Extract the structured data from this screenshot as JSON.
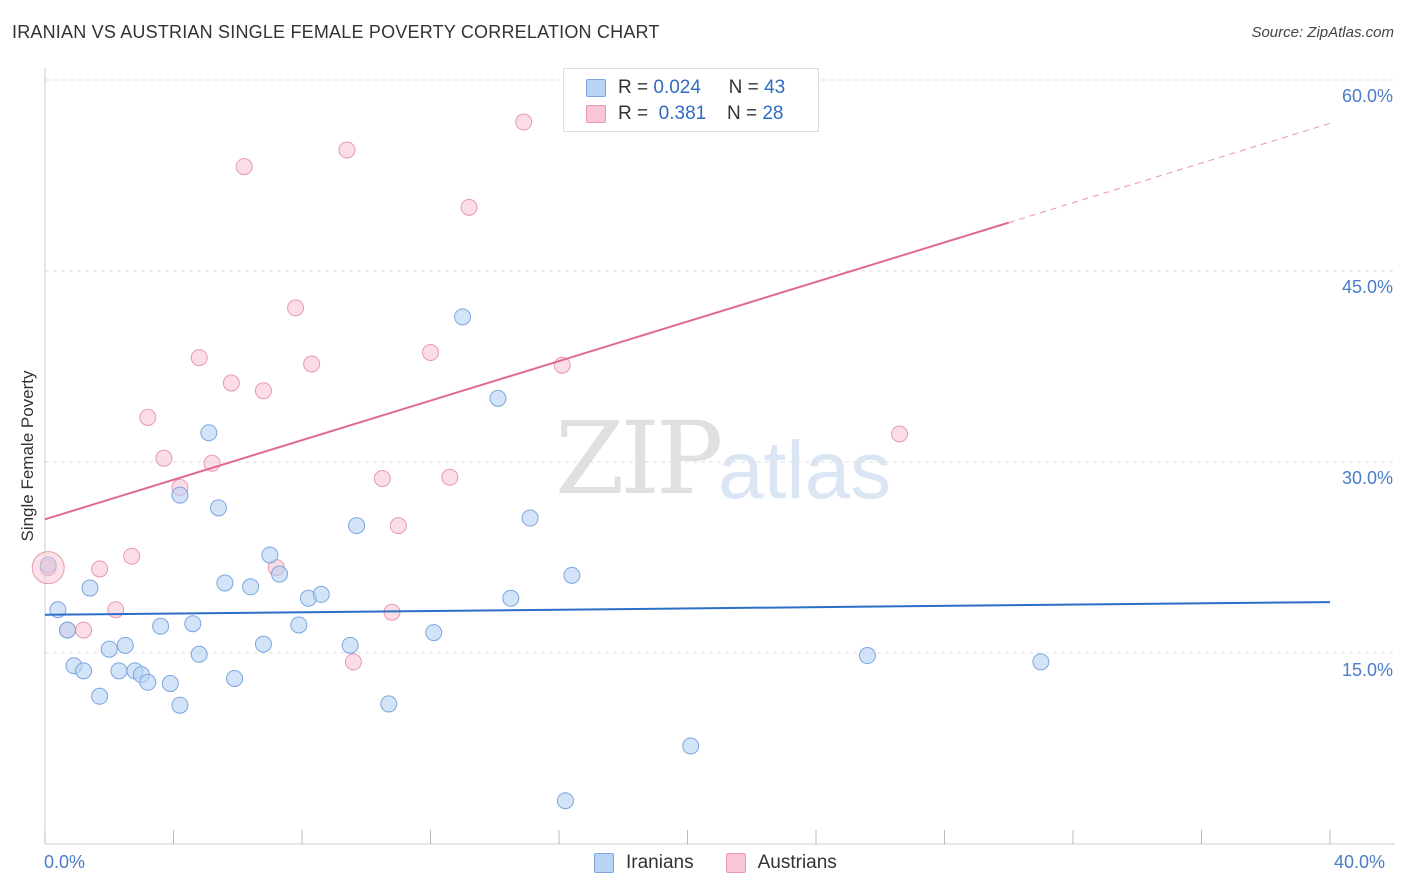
{
  "title": "IRANIAN VS AUSTRIAN SINGLE FEMALE POVERTY CORRELATION CHART",
  "source": "Source: ZipAtlas.com",
  "watermark": {
    "zip": "ZIP",
    "atlas": "atlas"
  },
  "legend": {
    "rows": [
      {
        "r_label": "R =",
        "r_value": "0.024",
        "n_label": "N =",
        "n_value": "43"
      },
      {
        "r_label": "R =",
        "r_value": "0.381",
        "n_label": "N =",
        "n_value": "28"
      }
    ]
  },
  "bottom_legend": [
    "Iranians",
    "Austrians"
  ],
  "colors": {
    "iranian_fill": "#b8d2f4",
    "iranian_stroke": "#7ba6de",
    "iranian_line": "#2c6fc7",
    "austrian_fill": "#f8c6d4",
    "austrian_stroke": "#e89ab2",
    "austrian_line": "#e06a92",
    "axis_text": "#4a7cc8"
  },
  "chart_data": {
    "type": "scatter",
    "title": "IRANIAN VS AUSTRIAN SINGLE FEMALE POVERTY CORRELATION CHART",
    "xlabel": "",
    "ylabel": "Single Female Poverty",
    "xlim": [
      0,
      40
    ],
    "ylim": [
      0,
      60
    ],
    "x_tick_labels": [
      "0.0%",
      "40.0%"
    ],
    "y_ticks": [
      15,
      30,
      45,
      60
    ],
    "y_tick_labels": [
      "15.0%",
      "30.0%",
      "45.0%",
      "60.0%"
    ],
    "grid": true,
    "series": [
      {
        "name": "Iranians",
        "R": 0.024,
        "N": 43,
        "trend": {
          "x0": 0,
          "y0": 18.0,
          "x1": 40,
          "y1": 19.0
        },
        "points": [
          [
            0.1,
            21.9
          ],
          [
            0.4,
            18.4
          ],
          [
            0.7,
            16.8
          ],
          [
            0.9,
            14.0
          ],
          [
            1.2,
            13.6
          ],
          [
            1.4,
            20.1
          ],
          [
            1.7,
            11.6
          ],
          [
            2.0,
            15.3
          ],
          [
            2.3,
            13.6
          ],
          [
            2.5,
            15.6
          ],
          [
            2.8,
            13.6
          ],
          [
            3.0,
            13.3
          ],
          [
            3.2,
            12.7
          ],
          [
            3.6,
            17.1
          ],
          [
            3.9,
            12.6
          ],
          [
            4.2,
            10.9
          ],
          [
            4.6,
            17.3
          ],
          [
            4.8,
            14.9
          ],
          [
            5.1,
            32.3
          ],
          [
            5.4,
            26.4
          ],
          [
            5.6,
            20.5
          ],
          [
            5.9,
            13.0
          ],
          [
            6.4,
            20.2
          ],
          [
            6.8,
            15.7
          ],
          [
            7.0,
            22.7
          ],
          [
            7.3,
            21.2
          ],
          [
            7.9,
            17.2
          ],
          [
            8.2,
            19.3
          ],
          [
            8.6,
            19.6
          ],
          [
            9.5,
            15.6
          ],
          [
            9.7,
            25.0
          ],
          [
            10.7,
            11.0
          ],
          [
            12.1,
            16.6
          ],
          [
            13.0,
            41.4
          ],
          [
            14.1,
            35.0
          ],
          [
            14.5,
            19.3
          ],
          [
            15.1,
            25.6
          ],
          [
            16.2,
            3.4
          ],
          [
            16.4,
            21.1
          ],
          [
            20.1,
            7.7
          ],
          [
            25.6,
            14.8
          ],
          [
            31.0,
            14.3
          ],
          [
            4.2,
            27.4
          ]
        ]
      },
      {
        "name": "Austrians",
        "R": 0.381,
        "N": 28,
        "trend": {
          "x0": 0,
          "y0": 25.5,
          "x1": 30,
          "y1": 48.8,
          "dash_to_x": 40,
          "dash_to_y": 56.6
        },
        "points": [
          [
            0.1,
            21.7
          ],
          [
            0.7,
            16.8
          ],
          [
            1.2,
            16.8
          ],
          [
            1.7,
            21.6
          ],
          [
            2.2,
            18.4
          ],
          [
            2.7,
            22.6
          ],
          [
            3.2,
            33.5
          ],
          [
            3.7,
            30.3
          ],
          [
            4.2,
            28.0
          ],
          [
            4.8,
            38.2
          ],
          [
            5.2,
            29.9
          ],
          [
            5.8,
            36.2
          ],
          [
            6.2,
            53.2
          ],
          [
            6.8,
            35.6
          ],
          [
            7.2,
            21.7
          ],
          [
            7.8,
            42.1
          ],
          [
            8.3,
            37.7
          ],
          [
            9.4,
            54.5
          ],
          [
            9.6,
            14.3
          ],
          [
            10.5,
            28.7
          ],
          [
            10.8,
            18.2
          ],
          [
            11.0,
            25.0
          ],
          [
            12.0,
            38.6
          ],
          [
            12.6,
            28.8
          ],
          [
            13.2,
            50.0
          ],
          [
            14.9,
            56.7
          ],
          [
            16.1,
            37.6
          ],
          [
            26.6,
            32.2
          ]
        ]
      }
    ]
  }
}
